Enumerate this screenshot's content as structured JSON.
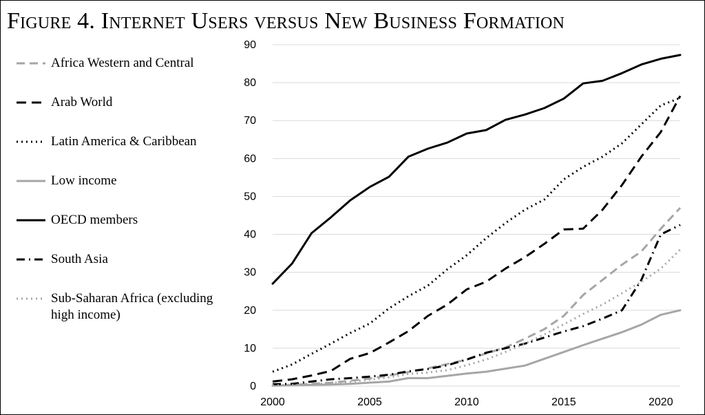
{
  "title": "Figure 4. Internet Users versus New Business Formation",
  "chart_data": {
    "type": "line",
    "title": "Figure 4. Internet Users versus New Business Formation",
    "xlabel": "",
    "ylabel": "",
    "xlim": [
      2000,
      2021
    ],
    "ylim": [
      0,
      90
    ],
    "x_ticks": [
      "2000",
      "2005",
      "2010",
      "2015",
      "2020"
    ],
    "y_ticks": [
      "0",
      "10",
      "20",
      "30",
      "40",
      "50",
      "60",
      "70",
      "80",
      "90"
    ],
    "grid": "horizontal",
    "legend_position": "left",
    "x": [
      2000,
      2001,
      2002,
      2003,
      2004,
      2005,
      2006,
      2007,
      2008,
      2009,
      2010,
      2011,
      2012,
      2013,
      2014,
      2015,
      2016,
      2017,
      2018,
      2019,
      2020,
      2021
    ],
    "series": [
      {
        "name": "Africa Western and Central",
        "color": "#a6a6a6",
        "dash": "dashed",
        "values": [
          0.2,
          0.3,
          0.6,
          0.9,
          1.4,
          2.0,
          2.8,
          3.7,
          4.7,
          5.8,
          7.0,
          8.6,
          10.2,
          12.5,
          15.0,
          18.5,
          24.0,
          28.0,
          32.0,
          35.5,
          41.5,
          47.0
        ]
      },
      {
        "name": "Arab World",
        "color": "#000000",
        "dash": "longdash",
        "values": [
          1.2,
          1.8,
          2.8,
          4.0,
          7.2,
          8.7,
          11.5,
          14.5,
          18.5,
          21.5,
          25.5,
          27.5,
          31.0,
          34.0,
          37.5,
          41.3,
          41.5,
          46.5,
          53.0,
          60.5,
          67.0,
          76.5
        ]
      },
      {
        "name": "Latin America & Caribbean",
        "color": "#000000",
        "dash": "dotted",
        "values": [
          3.8,
          5.7,
          8.5,
          11.2,
          14.0,
          16.5,
          20.5,
          23.7,
          26.5,
          30.8,
          34.5,
          39.0,
          43.0,
          46.5,
          49.2,
          54.5,
          57.8,
          60.5,
          64.0,
          69.0,
          74.0,
          76.0
        ]
      },
      {
        "name": "Low income",
        "color": "#a6a6a6",
        "dash": "solid",
        "values": [
          0.1,
          0.2,
          0.3,
          0.4,
          0.6,
          0.9,
          1.2,
          2.1,
          2.1,
          2.7,
          3.3,
          3.8,
          4.6,
          5.4,
          7.2,
          9.0,
          10.8,
          12.5,
          14.2,
          16.2,
          18.8,
          20.0
        ]
      },
      {
        "name": "OECD members",
        "color": "#000000",
        "dash": "solid",
        "values": [
          27.0,
          32.3,
          40.3,
          44.5,
          49.0,
          52.5,
          55.2,
          60.5,
          62.6,
          64.2,
          66.6,
          67.5,
          70.2,
          71.6,
          73.3,
          75.8,
          79.8,
          80.5,
          82.5,
          84.8,
          86.3,
          87.3
        ]
      },
      {
        "name": "South Asia",
        "color": "#000000",
        "dash": "dashdot",
        "values": [
          0.5,
          0.6,
          1.2,
          1.8,
          2.1,
          2.5,
          3.0,
          3.9,
          4.5,
          5.5,
          7.0,
          8.8,
          10.0,
          11.2,
          12.8,
          14.4,
          15.8,
          17.8,
          20.0,
          28.0,
          40.0,
          42.5
        ]
      },
      {
        "name": "Sub-Saharan Africa (excluding high income)",
        "color": "#a6a6a6",
        "dash": "dotted",
        "values": [
          0.2,
          0.3,
          0.5,
          0.8,
          1.1,
          1.7,
          2.3,
          3.2,
          3.6,
          4.2,
          5.5,
          7.0,
          9.0,
          11.2,
          13.6,
          16.3,
          19.0,
          21.5,
          24.5,
          27.5,
          31.0,
          36.0
        ]
      }
    ]
  }
}
